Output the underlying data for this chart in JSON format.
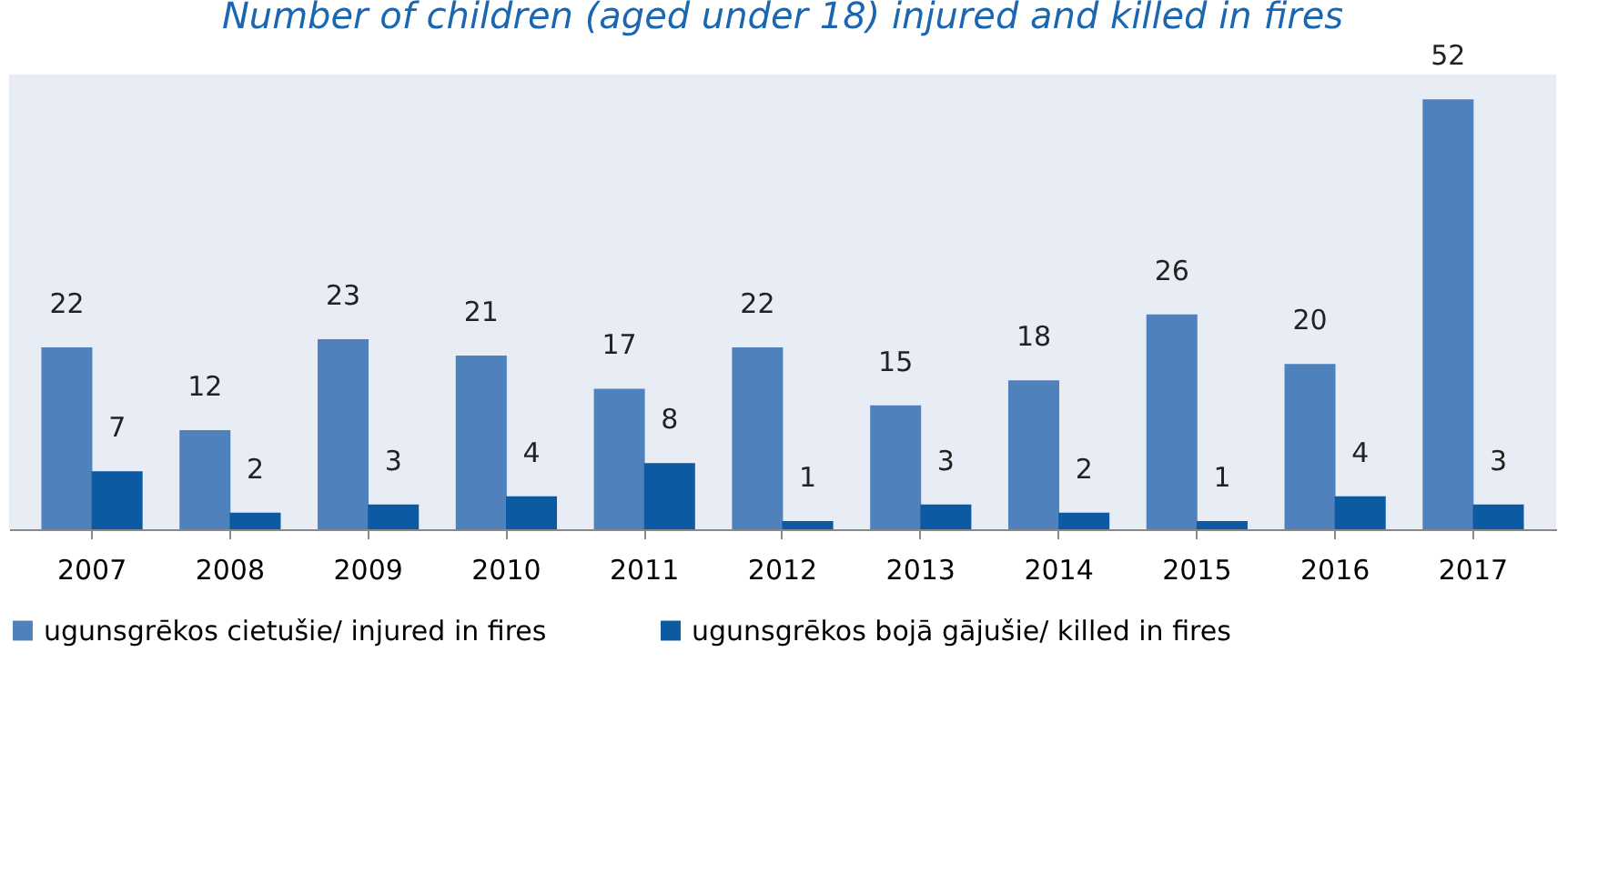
{
  "chart_data": {
    "type": "bar",
    "title": "Number of children (aged under 18) injured and killed in fires",
    "categories": [
      "2007",
      "2008",
      "2009",
      "2010",
      "2011",
      "2012",
      "2013",
      "2014",
      "2015",
      "2016",
      "2017"
    ],
    "series": [
      {
        "name": "ugunsgrēkos cietušie/ injured in fires",
        "color": "#4f81bd",
        "values": [
          22,
          12,
          23,
          21,
          17,
          22,
          15,
          18,
          26,
          20,
          52
        ]
      },
      {
        "name": "ugunsgrēkos bojā gājušie/ killed in fires",
        "color": "#0b5aa2",
        "values": [
          7,
          2,
          3,
          4,
          8,
          1,
          3,
          2,
          1,
          4,
          3
        ]
      }
    ],
    "data_labels": true,
    "legend": "bottom",
    "grid": false
  }
}
